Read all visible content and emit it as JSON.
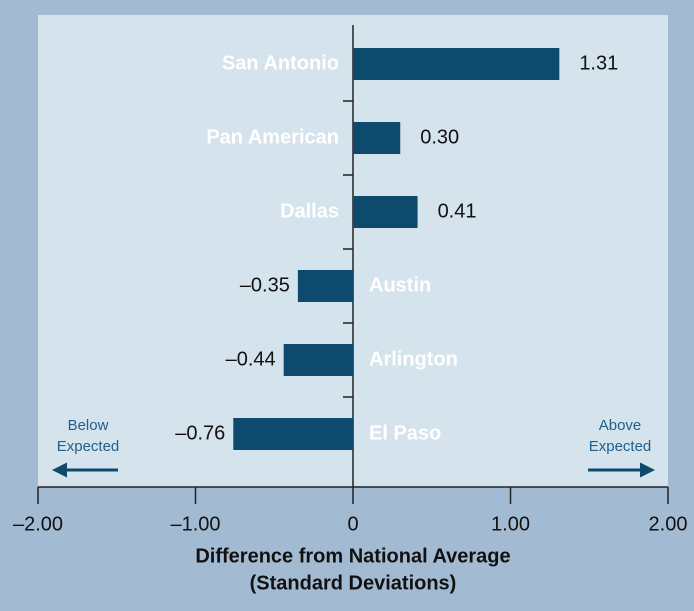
{
  "chart_data": {
    "type": "barh",
    "categories": [
      "San Antonio",
      "Pan American",
      "Dallas",
      "Austin",
      "Arlington",
      "El Paso"
    ],
    "values": [
      1.31,
      0.3,
      0.41,
      -0.35,
      -0.44,
      -0.76
    ],
    "value_labels": [
      "1.31",
      "0.30",
      "0.41",
      "–0.35",
      "–0.44",
      "–0.76"
    ],
    "color": "#0d4a6e",
    "xlim": [
      -2,
      2
    ],
    "xticks": [
      {
        "value": -2,
        "label": "–2.00"
      },
      {
        "value": -1,
        "label": "–1.00"
      },
      0,
      {
        "value": 1,
        "label": "1.00"
      },
      {
        "value": 2,
        "label": "2.00"
      }
    ],
    "xlabel": [
      "Difference from National Average",
      "(Standard Deviations)"
    ],
    "annotations": [
      {
        "text": [
          "Below",
          "Expected"
        ],
        "direction": "left"
      },
      {
        "text": [
          "Above",
          "Expected"
        ],
        "direction": "right"
      }
    ]
  }
}
